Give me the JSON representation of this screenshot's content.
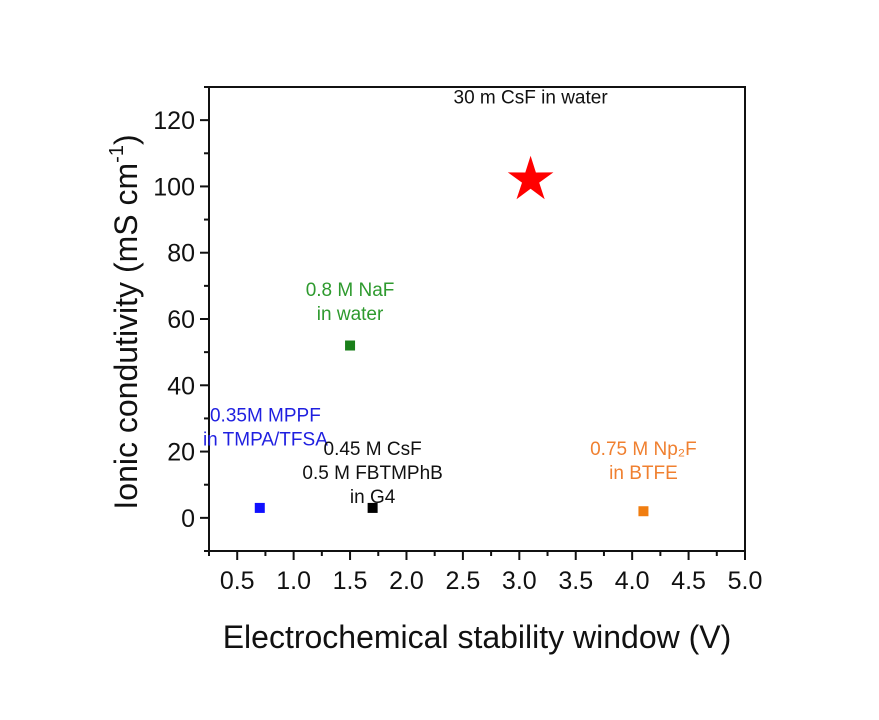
{
  "chart_data": {
    "type": "scatter",
    "title": "",
    "xlabel": "Electrochemical stability window (V)",
    "ylabel": "Ionic condutivity (mS cm",
    "ylabel_sup": "-1",
    "ylabel_end": ")",
    "xlim": [
      0.25,
      5.0
    ],
    "ylim": [
      -10,
      130
    ],
    "xticks": [
      "0.5",
      "1.0",
      "1.5",
      "2.0",
      "2.5",
      "3.0",
      "3.5",
      "4.0",
      "4.5",
      "5.0"
    ],
    "xtick_values": [
      0.5,
      1.0,
      1.5,
      2.0,
      2.5,
      3.0,
      3.5,
      4.0,
      4.5,
      5.0
    ],
    "yticks": [
      "0",
      "20",
      "40",
      "60",
      "80",
      "100",
      "120"
    ],
    "ytick_values": [
      0,
      20,
      40,
      60,
      80,
      100,
      120
    ],
    "grid": false,
    "points": [
      {
        "name": "30 m CsF in water",
        "x": 3.1,
        "y": 102,
        "marker": "star",
        "color": "#ff0000",
        "label_lines": [
          "30 m CsF in water"
        ],
        "label_color": "#111111",
        "label_at": [
          3.1,
          125
        ]
      },
      {
        "name": "0.8 M NaF in water",
        "x": 1.5,
        "y": 52,
        "marker": "square",
        "color": "#1a7f1a",
        "label_lines": [
          "0.8 M NaF",
          "in water"
        ],
        "label_color": "#2e9a2e",
        "label_at": [
          1.5,
          67
        ]
      },
      {
        "name": "0.35M MPPF in TMPA/TFSA",
        "x": 0.7,
        "y": 3,
        "marker": "square",
        "color": "#1010ff",
        "label_lines": [
          "0.35M MPPF",
          "in TMPA/TFSA"
        ],
        "label_color": "#1f1fe0",
        "label_at": [
          0.75,
          29
        ]
      },
      {
        "name": "0.45 M CsF 0.5 M FBTMPhB in G4",
        "x": 1.7,
        "y": 3,
        "marker": "square",
        "color": "#000000",
        "label_lines": [
          "0.45 M CsF",
          "0.5 M FBTMPhB",
          "  in G4"
        ],
        "label_color": "#111111",
        "label_at": [
          1.7,
          19
        ]
      },
      {
        "name": "0.75 M Np2F in BTFE",
        "x": 4.1,
        "y": 2,
        "marker": "square",
        "color": "#f07d10",
        "label_lines": [
          "0.75 M Np₂F",
          "in BTFE"
        ],
        "label_color": "#f08030",
        "label_at": [
          4.1,
          19
        ]
      }
    ]
  }
}
